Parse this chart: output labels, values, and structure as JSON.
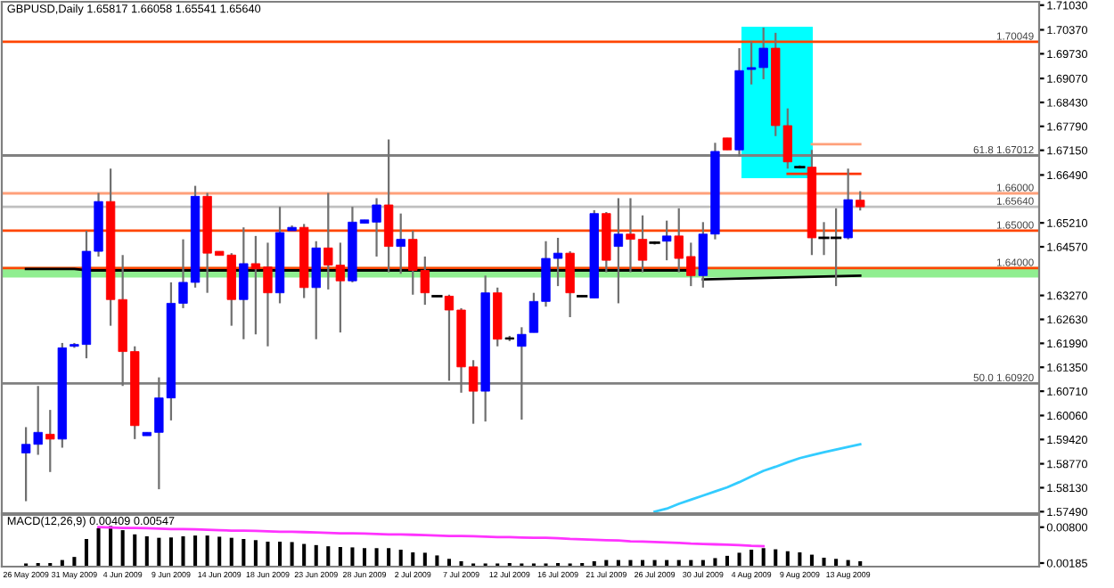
{
  "chart_data": [
    {
      "type": "candlestick",
      "title": "GBPUSD,Daily 1.65817 1.66058 1.65541 1.65640",
      "categories": [
        null,
        null,
        null,
        null,
        null,
        null,
        null,
        null,
        null,
        null,
        null,
        null,
        null,
        null,
        null,
        null,
        null,
        null,
        null,
        null,
        null,
        null,
        null,
        null,
        null,
        null,
        null,
        null,
        null,
        null,
        null,
        null,
        null,
        null,
        null,
        null,
        null,
        null,
        null,
        null,
        null,
        null,
        null,
        null,
        null,
        null,
        null,
        null,
        null,
        null,
        null,
        null,
        null,
        null,
        null,
        null,
        null,
        null,
        null,
        null,
        null,
        null,
        null,
        null,
        null,
        null,
        null,
        null,
        null,
        null
      ],
      "ohlc": [
        [
          1.5906,
          1.5975,
          1.5777,
          1.5929
        ],
        [
          1.5929,
          1.6085,
          1.5901,
          1.5961
        ],
        [
          1.5956,
          1.6021,
          1.5855,
          1.5943
        ],
        [
          1.5943,
          1.62,
          1.592,
          1.6187
        ],
        [
          1.6191,
          1.62,
          1.6187,
          1.6196
        ],
        [
          1.6196,
          1.65,
          1.6159,
          1.6445
        ],
        [
          1.6445,
          1.6601,
          1.6431,
          1.6578
        ],
        [
          1.6578,
          1.6666,
          1.6246,
          1.6316
        ],
        [
          1.6316,
          1.6435,
          1.6085,
          1.6177
        ],
        [
          1.6177,
          1.6191,
          1.5943,
          1.5979
        ],
        [
          1.5952,
          1.5961,
          1.5952,
          1.5961
        ],
        [
          1.5961,
          1.6108,
          1.5809,
          1.6053
        ],
        [
          1.6053,
          1.6362,
          1.5993,
          1.6306
        ],
        [
          1.6306,
          1.6477,
          1.6293,
          1.6362
        ],
        [
          1.6362,
          1.662,
          1.6348,
          1.6592
        ],
        [
          1.6592,
          1.6601,
          1.6334,
          1.644
        ],
        [
          1.6445,
          1.6445,
          1.6434,
          1.6434
        ],
        [
          1.6435,
          1.644,
          1.6246,
          1.6316
        ],
        [
          1.6316,
          1.6509,
          1.621,
          1.6412
        ],
        [
          1.6412,
          1.6486,
          1.6223,
          1.6398
        ],
        [
          1.6403,
          1.6468,
          1.6191,
          1.6334
        ],
        [
          1.6334,
          1.6564,
          1.6306,
          1.6495
        ],
        [
          1.65,
          1.6514,
          1.65,
          1.6509
        ],
        [
          1.6509,
          1.6518,
          1.632,
          1.6348
        ],
        [
          1.6348,
          1.6472,
          1.621,
          1.6454
        ],
        [
          1.6454,
          1.6601,
          1.6343,
          1.6408
        ],
        [
          1.6408,
          1.6468,
          1.6228,
          1.6366
        ],
        [
          1.6366,
          1.6564,
          1.6362,
          1.6523
        ],
        [
          1.652,
          1.6529,
          1.652,
          1.6529
        ],
        [
          1.6523,
          1.6587,
          1.6431,
          1.6569
        ],
        [
          1.6569,
          1.6744,
          1.6389,
          1.6458
        ],
        [
          1.6458,
          1.6546,
          1.6385,
          1.6477
        ],
        [
          1.6477,
          1.65,
          1.6329,
          1.6394
        ],
        [
          1.6394,
          1.6431,
          1.6302,
          1.6334
        ],
        [
          1.6325,
          1.6327,
          1.6323,
          1.6325
        ],
        [
          1.6325,
          1.6329,
          1.6099,
          1.6288
        ],
        [
          1.6288,
          1.6293,
          1.6067,
          1.6136
        ],
        [
          1.6136,
          1.6154,
          1.5984,
          1.6071
        ],
        [
          1.6071,
          1.638,
          1.599,
          1.6334
        ],
        [
          1.6334,
          1.6348,
          1.6191,
          1.621
        ],
        [
          1.6214,
          1.6219,
          1.6205,
          1.621
        ],
        [
          1.6191,
          1.6242,
          1.5995,
          1.6223
        ],
        [
          1.6228,
          1.6334,
          1.6228,
          1.6311
        ],
        [
          1.6311,
          1.6472,
          1.6297,
          1.6426
        ],
        [
          1.6426,
          1.6481,
          1.6352,
          1.644
        ],
        [
          1.644,
          1.6445,
          1.6269,
          1.6334
        ],
        [
          1.6325,
          1.6327,
          1.6323,
          1.6325
        ],
        [
          1.632,
          1.6555,
          1.632,
          1.6546
        ],
        [
          1.6546,
          1.655,
          1.6389,
          1.6421
        ],
        [
          1.6458,
          1.6587,
          1.6306,
          1.6491
        ],
        [
          1.6491,
          1.6587,
          1.6389,
          1.6477
        ],
        [
          1.6477,
          1.6541,
          1.6389,
          1.6421
        ],
        [
          1.6468,
          1.6472,
          1.6463,
          1.6468
        ],
        [
          1.6472,
          1.6527,
          1.6421,
          1.6486
        ],
        [
          1.6486,
          1.656,
          1.6389,
          1.6426
        ],
        [
          1.6431,
          1.6468,
          1.6352,
          1.638
        ],
        [
          1.638,
          1.6523,
          1.6348,
          1.6491
        ],
        [
          1.6491,
          1.6735,
          1.6477,
          1.6712
        ],
        [
          1.6748,
          1.6748,
          1.6716,
          1.6716
        ],
        [
          1.6716,
          1.6988,
          1.6698,
          1.6928
        ],
        [
          1.6931,
          1.7006,
          1.6891,
          1.6936
        ],
        [
          1.6936,
          1.7043,
          1.6905,
          1.6988
        ],
        [
          1.6988,
          1.7029,
          1.6753,
          1.6781
        ],
        [
          1.6781,
          1.6827,
          1.6666,
          1.6684
        ],
        [
          1.667,
          1.6675,
          1.6666,
          1.667
        ],
        [
          1.667,
          1.6716,
          1.6435,
          1.6481
        ],
        [
          1.6481,
          1.6523,
          1.6435,
          1.6481
        ],
        [
          1.6481,
          1.656,
          1.6352,
          1.6481
        ],
        [
          1.6481,
          1.6666,
          1.6477,
          1.6583
        ],
        [
          1.65817,
          1.66058,
          1.65541,
          1.6564
        ]
      ],
      "colors": [
        "#0000ff",
        "#0000ff",
        "#ff0000",
        "#0000ff",
        "#0000ff",
        "#0000ff",
        "#0000ff",
        "#ff0000",
        "#ff0000",
        "#ff0000",
        "#0000ff",
        "#0000ff",
        "#0000ff",
        "#0000ff",
        "#0000ff",
        "#ff0000",
        "#ff0000",
        "#ff0000",
        "#0000ff",
        "#ff0000",
        "#ff0000",
        "#0000ff",
        "#0000ff",
        "#ff0000",
        "#0000ff",
        "#ff0000",
        "#ff0000",
        "#0000ff",
        "#0000ff",
        "#0000ff",
        "#ff0000",
        "#0000ff",
        "#ff0000",
        "#ff0000",
        "#000000",
        "#ff0000",
        "#ff0000",
        "#ff0000",
        "#0000ff",
        "#ff0000",
        "#000000",
        "#0000ff",
        "#0000ff",
        "#0000ff",
        "#0000ff",
        "#ff0000",
        "#000000",
        "#0000ff",
        "#ff0000",
        "#0000ff",
        "#ff0000",
        "#ff0000",
        "#000000",
        "#0000ff",
        "#ff0000",
        "#ff0000",
        "#0000ff",
        "#0000ff",
        "#ff0000",
        "#0000ff",
        "#0000ff",
        "#0000ff",
        "#ff0000",
        "#ff0000",
        "#000000",
        "#ff0000",
        "#000000",
        "#000000",
        "#0000ff",
        "#ff0000"
      ],
      "series": [
        {
          "type": "line",
          "color": "#000000",
          "values": [
            1.6398,
            1.6398,
            1.6398,
            1.6398,
            1.6398,
            1.6394,
            1.6394,
            1.6394,
            1.6394,
            1.6394,
            1.6394,
            1.6394,
            1.6394,
            1.6394,
            1.6394,
            1.6394,
            1.6394,
            1.6394,
            1.6394,
            1.6394,
            1.6394,
            1.6394,
            1.6394,
            1.6394,
            1.6394,
            1.6394,
            1.6394,
            1.6394,
            1.6394,
            1.6394,
            1.6394,
            1.6394,
            1.6394,
            1.6394,
            1.6394,
            1.6394,
            1.6394,
            1.6394,
            1.6394,
            1.6394,
            1.6394,
            1.6394,
            1.6394,
            1.6394,
            1.6394,
            1.6394,
            1.6394,
            1.6394,
            1.6394,
            1.6394,
            1.6394,
            1.6394,
            1.6394,
            1.6394,
            1.6394,
            1.6394,
            null,
            null,
            null,
            null,
            null,
            null,
            null,
            null,
            null,
            null,
            null,
            null,
            null,
            null
          ]
        },
        {
          "type": "line",
          "color": "#000000",
          "values": [
            null,
            null,
            null,
            null,
            null,
            null,
            null,
            null,
            null,
            null,
            null,
            null,
            null,
            null,
            null,
            null,
            null,
            null,
            null,
            null,
            null,
            null,
            null,
            null,
            null,
            null,
            null,
            null,
            null,
            null,
            null,
            null,
            null,
            null,
            null,
            null,
            null,
            null,
            null,
            null,
            null,
            null,
            null,
            null,
            null,
            null,
            null,
            null,
            null,
            null,
            null,
            null,
            null,
            null,
            null,
            null,
            1.637,
            null,
            null,
            null,
            null,
            null,
            null,
            null,
            null,
            null,
            null,
            null,
            null,
            1.638
          ]
        },
        {
          "type": "line",
          "color": "#33ccff",
          "values": [
            null,
            null,
            null,
            null,
            null,
            null,
            null,
            null,
            null,
            null,
            null,
            null,
            null,
            null,
            null,
            null,
            null,
            null,
            null,
            null,
            null,
            null,
            null,
            null,
            null,
            null,
            null,
            null,
            null,
            null,
            null,
            null,
            null,
            null,
            null,
            null,
            null,
            null,
            null,
            null,
            null,
            null,
            null,
            null,
            null,
            null,
            null,
            null,
            null,
            null,
            null,
            null,
            1.5749,
            1.5757,
            1.577,
            1.5781,
            1.5792,
            1.5803,
            1.5814,
            1.5828,
            1.5843,
            1.5858,
            1.5869,
            1.5881,
            1.5892,
            1.59,
            1.5908,
            1.5915,
            1.5922,
            1.5929
          ]
        },
        {
          "type": "line",
          "color": "#ff3300",
          "values": [
            null,
            null,
            null,
            null,
            null,
            null,
            null,
            null,
            null,
            null,
            null,
            null,
            null,
            null,
            null,
            null,
            null,
            null,
            null,
            null,
            null,
            null,
            null,
            null,
            null,
            null,
            null,
            null,
            null,
            null,
            null,
            null,
            null,
            null,
            null,
            null,
            null,
            null,
            null,
            null,
            null,
            null,
            null,
            null,
            null,
            null,
            null,
            null,
            null,
            null,
            null,
            null,
            null,
            null,
            null,
            null,
            null,
            null,
            null,
            null,
            null,
            null,
            null,
            1.6652,
            null,
            null,
            null,
            null,
            null,
            1.6652
          ]
        },
        {
          "type": "line",
          "color": "#ffa07a",
          "values": [
            null,
            null,
            null,
            null,
            null,
            null,
            null,
            null,
            null,
            null,
            null,
            null,
            null,
            null,
            null,
            null,
            null,
            null,
            null,
            null,
            null,
            null,
            null,
            null,
            null,
            null,
            null,
            null,
            null,
            null,
            null,
            null,
            null,
            null,
            null,
            null,
            null,
            null,
            null,
            null,
            null,
            null,
            null,
            null,
            null,
            null,
            null,
            null,
            null,
            null,
            null,
            null,
            null,
            null,
            null,
            null,
            null,
            null,
            null,
            null,
            null,
            null,
            null,
            null,
            null,
            1.6731,
            null,
            null,
            null,
            1.6731
          ]
        }
      ],
      "ref_lines": [
        {
          "axis": "y",
          "value": 1.70049,
          "label": "1.70049",
          "color": "#ff4500"
        },
        {
          "axis": "y",
          "value": 1.67012,
          "label": "61.8 1.67012",
          "color": "#808080"
        },
        {
          "axis": "y",
          "value": 1.66,
          "label": "1.66000",
          "color": "#ffa07a"
        },
        {
          "axis": "y",
          "value": 1.6564,
          "label": "1.65640",
          "color": "#c0c0c0"
        },
        {
          "axis": "y",
          "value": 1.65,
          "label": "1.65000",
          "color": "#ff4500"
        },
        {
          "axis": "y",
          "value": 1.64,
          "label": "1.64000",
          "color": "#ff4500"
        },
        {
          "axis": "y",
          "value": 1.6092,
          "label": "50.0 1.60920",
          "color": "#808080"
        }
      ],
      "bands": [
        {
          "axis": "y",
          "from": 1.6375,
          "to": 1.6403,
          "color": "#90ee90"
        }
      ],
      "ylim": [
        1.5745,
        1.7112
      ],
      "yticks": [
        {
          "value": 1.7103,
          "label": "1.71030"
        },
        {
          "value": 1.7037,
          "label": "1.70370"
        },
        {
          "value": 1.6973,
          "label": "1.69730"
        },
        {
          "value": 1.6907,
          "label": "1.69070"
        },
        {
          "value": 1.6843,
          "label": "1.68430"
        },
        {
          "value": 1.6779,
          "label": "1.67790"
        },
        {
          "value": 1.6715,
          "label": "1.67150"
        },
        {
          "value": 1.6649,
          "label": "1.66490"
        },
        {
          "value": 1.6521,
          "label": "1.65210"
        },
        {
          "value": 1.6457,
          "label": "1.64570"
        },
        {
          "value": 1.6327,
          "label": "1.63270"
        },
        {
          "value": 1.6263,
          "label": "1.62630"
        },
        {
          "value": 1.6199,
          "label": "1.61990"
        },
        {
          "value": 1.6135,
          "label": "1.61350"
        },
        {
          "value": 1.6071,
          "label": "1.60710"
        },
        {
          "value": 1.6006,
          "label": "1.60060"
        },
        {
          "value": 1.5942,
          "label": "1.59420"
        },
        {
          "value": 1.5877,
          "label": "1.58770"
        },
        {
          "value": 1.5813,
          "label": "1.58130"
        },
        {
          "value": 1.5749,
          "label": "1.57490"
        }
      ],
      "tick_labels": "y",
      "grid": false,
      "legend": false
    },
    {
      "type": "bar",
      "subtitle": "MACD(12,26,9) 0.00409 0.00547",
      "categories": [
        "26 May 2009",
        null,
        null,
        null,
        "31 May 2009",
        null,
        null,
        null,
        "4 Jun 2009",
        null,
        null,
        null,
        "9 Jun 2009",
        null,
        null,
        null,
        "14 Jun 2009",
        null,
        null,
        null,
        "18 Jun 2009",
        null,
        null,
        null,
        "23 Jun 2009",
        null,
        null,
        null,
        "28 Jun 2009",
        null,
        null,
        null,
        "2 Jul 2009",
        null,
        null,
        null,
        "7 Jul 2009",
        null,
        null,
        null,
        "12 Jul 2009",
        null,
        null,
        null,
        "16 Jul 2009",
        null,
        null,
        null,
        "21 Jul 2009",
        null,
        null,
        null,
        "26 Jul 2009",
        null,
        null,
        null,
        "30 Jul 2009",
        null,
        null,
        null,
        "4 Aug 2009",
        null,
        null,
        null,
        "9 Aug 2009",
        null,
        null,
        null,
        "13 Aug 2009",
        null
      ],
      "series": [
        {
          "type": "bar",
          "color": "#000000",
          "values": [
            0.00178,
            0.00185,
            0.00185,
            0.00237,
            0.0029,
            0.00598,
            0.00782,
            0.00821,
            0.00749,
            0.00677,
            0.00644,
            0.00618,
            0.00624,
            0.00644,
            0.00657,
            0.00657,
            0.00637,
            0.00618,
            0.00598,
            0.00578,
            0.00552,
            0.00552,
            0.00545,
            0.00513,
            0.00493,
            0.00473,
            0.0046,
            0.00454,
            0.00441,
            0.00441,
            0.00441,
            0.00414,
            0.00368,
            0.00362,
            0.00316,
            0.00257,
            0.00217,
            0.00178,
            0.00178,
            0.00178,
            0.00185,
            0.00178,
            0.00178,
            0.00178,
            0.00185,
            0.00178,
            0.00185,
            0.00217,
            0.00237,
            0.00237,
            0.00237,
            0.00237,
            0.00237,
            0.00237,
            0.00237,
            0.00237,
            0.00237,
            0.0027,
            0.00309,
            0.00362,
            0.00414,
            0.00441,
            0.00421,
            0.00388,
            0.00368,
            0.00329,
            0.00277,
            0.00257,
            0.00237,
            0.00217
          ]
        },
        {
          "type": "line",
          "color": "#ff33ff",
          "values": [
            null,
            null,
            null,
            null,
            null,
            null,
            0.00801,
            0.00795,
            0.00788,
            0.00788,
            0.00782,
            0.00775,
            0.00769,
            0.00769,
            0.00762,
            0.00755,
            0.00749,
            0.00742,
            0.00742,
            0.00736,
            0.00729,
            0.00723,
            0.00723,
            0.00716,
            0.00709,
            0.00703,
            0.00696,
            0.00696,
            0.0069,
            0.00683,
            0.00677,
            0.00677,
            0.0067,
            0.00664,
            0.00657,
            0.0065,
            0.0065,
            0.00644,
            0.00637,
            0.00631,
            0.00631,
            0.00624,
            0.00618,
            0.00618,
            0.00611,
            0.00598,
            0.00591,
            0.00585,
            0.00578,
            0.00572,
            0.00559,
            0.00552,
            0.00545,
            0.00539,
            0.00532,
            0.00519,
            0.00513,
            0.00506,
            0.005,
            0.00493,
            0.0048,
            0.00473,
            null,
            null,
            null,
            null,
            null,
            null,
            null,
            null
          ]
        }
      ],
      "ylim": [
        0.00124,
        0.0101
      ],
      "yticks": [
        {
          "value": 0.008,
          "label": "0.00800"
        },
        {
          "value": 0.00185,
          "label": "0.00185"
        }
      ],
      "grid": false,
      "legend": false
    }
  ]
}
